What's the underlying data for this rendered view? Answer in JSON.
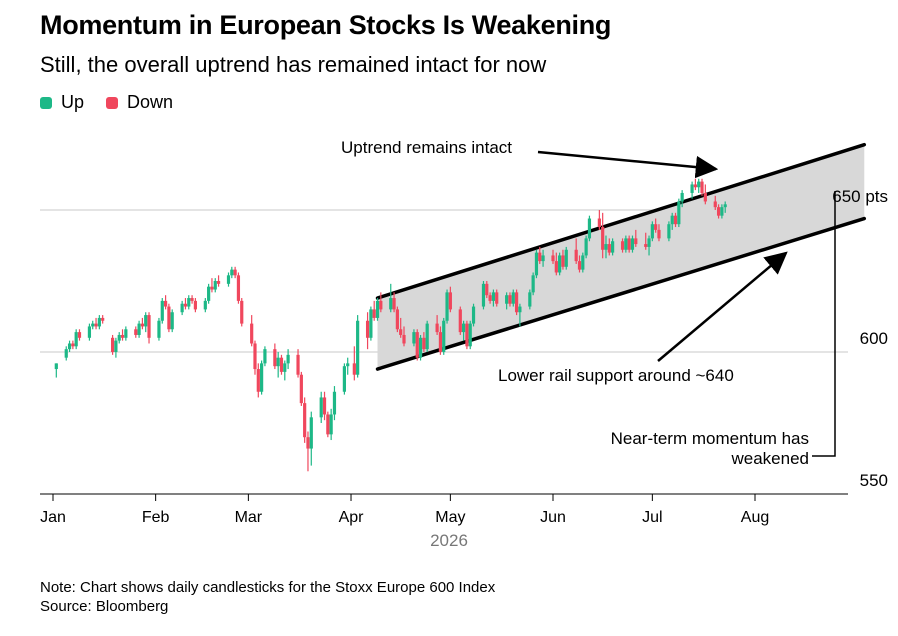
{
  "title": "Momentum in European Stocks Is Weakening",
  "subtitle": "Still, the overall uptrend has remained intact for now",
  "legend": [
    {
      "label": "Up",
      "color": "#1db887"
    },
    {
      "label": "Down",
      "color": "#f0475d"
    }
  ],
  "note": "Note: Chart shows daily candlesticks for the Stoxx Europe 600 Index",
  "source": "Source: Bloomberg",
  "chart_data": {
    "type": "candlestick",
    "x_axis": {
      "year_label": "2026",
      "months": [
        {
          "label": "Jan",
          "day": 1
        },
        {
          "label": "Feb",
          "day": 32
        },
        {
          "label": "Mar",
          "day": 60
        },
        {
          "label": "Apr",
          "day": 91
        },
        {
          "label": "May",
          "day": 121
        },
        {
          "label": "Jun",
          "day": 152
        },
        {
          "label": "Jul",
          "day": 182
        },
        {
          "label": "Aug",
          "day": 213
        }
      ]
    },
    "y_axis": {
      "range": [
        545,
        660
      ],
      "ticks": [
        {
          "value": 550,
          "label": "550"
        },
        {
          "value": 600,
          "label": "600"
        },
        {
          "value": 650,
          "label": "650 pts"
        }
      ]
    },
    "channel": {
      "upper": [
        {
          "day": 99,
          "value": 619
        },
        {
          "day": 246,
          "value": 673
        }
      ],
      "lower": [
        {
          "day": 99,
          "value": 594
        },
        {
          "day": 246,
          "value": 647
        }
      ]
    },
    "annotations": [
      {
        "text": "Uptrend remains intact"
      },
      {
        "text": "Lower rail support around ~640"
      },
      {
        "text_lines": [
          "Near-term momentum has",
          "weakened"
        ]
      }
    ],
    "candles": [
      {
        "day": 2,
        "o": 594,
        "h": 596,
        "l": 591,
        "c": 596
      },
      {
        "day": 5,
        "o": 598,
        "h": 602,
        "l": 597,
        "c": 601
      },
      {
        "day": 6,
        "o": 601,
        "h": 604,
        "l": 600,
        "c": 603
      },
      {
        "day": 7,
        "o": 603,
        "h": 604,
        "l": 601,
        "c": 602
      },
      {
        "day": 8,
        "o": 602,
        "h": 608,
        "l": 601,
        "c": 607
      },
      {
        "day": 9,
        "o": 607,
        "h": 608,
        "l": 604,
        "c": 605
      },
      {
        "day": 12,
        "o": 605,
        "h": 610,
        "l": 604,
        "c": 609
      },
      {
        "day": 13,
        "o": 609,
        "h": 611,
        "l": 608,
        "c": 610
      },
      {
        "day": 14,
        "o": 610,
        "h": 612,
        "l": 608,
        "c": 609
      },
      {
        "day": 15,
        "o": 609,
        "h": 613,
        "l": 608,
        "c": 612
      },
      {
        "day": 16,
        "o": 612,
        "h": 613,
        "l": 610,
        "c": 611
      },
      {
        "day": 19,
        "o": 605,
        "h": 606,
        "l": 599,
        "c": 600
      },
      {
        "day": 20,
        "o": 600,
        "h": 605,
        "l": 598,
        "c": 604
      },
      {
        "day": 21,
        "o": 604,
        "h": 607,
        "l": 603,
        "c": 606
      },
      {
        "day": 22,
        "o": 606,
        "h": 608,
        "l": 604,
        "c": 605
      },
      {
        "day": 23,
        "o": 605,
        "h": 609,
        "l": 604,
        "c": 608
      },
      {
        "day": 26,
        "o": 608,
        "h": 609,
        "l": 605,
        "c": 606
      },
      {
        "day": 27,
        "o": 606,
        "h": 611,
        "l": 605,
        "c": 610
      },
      {
        "day": 28,
        "o": 610,
        "h": 612,
        "l": 608,
        "c": 609
      },
      {
        "day": 29,
        "o": 609,
        "h": 614,
        "l": 607,
        "c": 613
      },
      {
        "day": 30,
        "o": 613,
        "h": 614,
        "l": 603,
        "c": 605
      },
      {
        "day": 33,
        "o": 605,
        "h": 612,
        "l": 604,
        "c": 611
      },
      {
        "day": 34,
        "o": 611,
        "h": 619,
        "l": 610,
        "c": 618
      },
      {
        "day": 35,
        "o": 618,
        "h": 620,
        "l": 615,
        "c": 616
      },
      {
        "day": 36,
        "o": 616,
        "h": 617,
        "l": 607,
        "c": 608
      },
      {
        "day": 37,
        "o": 608,
        "h": 615,
        "l": 607,
        "c": 614
      },
      {
        "day": 40,
        "o": 614,
        "h": 618,
        "l": 613,
        "c": 617
      },
      {
        "day": 41,
        "o": 617,
        "h": 619,
        "l": 615,
        "c": 616
      },
      {
        "day": 42,
        "o": 616,
        "h": 620,
        "l": 615,
        "c": 619
      },
      {
        "day": 43,
        "o": 619,
        "h": 620,
        "l": 617,
        "c": 618
      },
      {
        "day": 44,
        "o": 618,
        "h": 619,
        "l": 614,
        "c": 615
      },
      {
        "day": 47,
        "o": 615,
        "h": 619,
        "l": 614,
        "c": 618
      },
      {
        "day": 48,
        "o": 618,
        "h": 624,
        "l": 617,
        "c": 623
      },
      {
        "day": 49,
        "o": 623,
        "h": 626,
        "l": 621,
        "c": 622
      },
      {
        "day": 50,
        "o": 622,
        "h": 626,
        "l": 621,
        "c": 625
      },
      {
        "day": 51,
        "o": 625,
        "h": 627,
        "l": 623,
        "c": 624
      },
      {
        "day": 54,
        "o": 624,
        "h": 628,
        "l": 623,
        "c": 627
      },
      {
        "day": 55,
        "o": 627,
        "h": 630,
        "l": 626,
        "c": 629
      },
      {
        "day": 56,
        "o": 629,
        "h": 630,
        "l": 626,
        "c": 627
      },
      {
        "day": 57,
        "o": 627,
        "h": 628,
        "l": 617,
        "c": 618
      },
      {
        "day": 58,
        "o": 618,
        "h": 619,
        "l": 609,
        "c": 610
      },
      {
        "day": 61,
        "o": 610,
        "h": 613,
        "l": 602,
        "c": 603
      },
      {
        "day": 62,
        "o": 603,
        "h": 604,
        "l": 592,
        "c": 594
      },
      {
        "day": 63,
        "o": 594,
        "h": 596,
        "l": 584,
        "c": 586
      },
      {
        "day": 64,
        "o": 586,
        "h": 597,
        "l": 585,
        "c": 596
      },
      {
        "day": 65,
        "o": 596,
        "h": 602,
        "l": 595,
        "c": 601
      },
      {
        "day": 68,
        "o": 601,
        "h": 603,
        "l": 594,
        "c": 595
      },
      {
        "day": 69,
        "o": 595,
        "h": 600,
        "l": 591,
        "c": 598
      },
      {
        "day": 70,
        "o": 598,
        "h": 599,
        "l": 592,
        "c": 593
      },
      {
        "day": 71,
        "o": 593,
        "h": 597,
        "l": 590,
        "c": 596
      },
      {
        "day": 72,
        "o": 596,
        "h": 601,
        "l": 594,
        "c": 599
      },
      {
        "day": 75,
        "o": 599,
        "h": 601,
        "l": 591,
        "c": 592
      },
      {
        "day": 76,
        "o": 592,
        "h": 593,
        "l": 581,
        "c": 582
      },
      {
        "day": 77,
        "o": 582,
        "h": 584,
        "l": 568,
        "c": 570
      },
      {
        "day": 78,
        "o": 570,
        "h": 572,
        "l": 558,
        "c": 566
      },
      {
        "day": 79,
        "o": 566,
        "h": 579,
        "l": 560,
        "c": 577
      },
      {
        "day": 82,
        "o": 577,
        "h": 586,
        "l": 575,
        "c": 584
      },
      {
        "day": 83,
        "o": 584,
        "h": 586,
        "l": 576,
        "c": 578
      },
      {
        "day": 84,
        "o": 578,
        "h": 579,
        "l": 570,
        "c": 571
      },
      {
        "day": 85,
        "o": 571,
        "h": 580,
        "l": 569,
        "c": 578
      },
      {
        "day": 86,
        "o": 578,
        "h": 588,
        "l": 576,
        "c": 586
      },
      {
        "day": 89,
        "o": 586,
        "h": 596,
        "l": 585,
        "c": 595
      },
      {
        "day": 90,
        "o": 595,
        "h": 598,
        "l": 592,
        "c": 596
      },
      {
        "day": 92,
        "o": 596,
        "h": 602,
        "l": 590,
        "c": 592
      },
      {
        "day": 93,
        "o": 592,
        "h": 613,
        "l": 591,
        "c": 611
      },
      {
        "day": 96,
        "o": 611,
        "h": 614,
        "l": 601,
        "c": 605
      },
      {
        "day": 97,
        "o": 605,
        "h": 616,
        "l": 604,
        "c": 615
      },
      {
        "day": 98,
        "o": 615,
        "h": 618,
        "l": 611,
        "c": 612
      },
      {
        "day": 99,
        "o": 612,
        "h": 619,
        "l": 611,
        "c": 618
      },
      {
        "day": 100,
        "o": 618,
        "h": 621,
        "l": 614,
        "c": 615
      },
      {
        "day": 103,
        "o": 615,
        "h": 624,
        "l": 614,
        "c": 619
      },
      {
        "day": 104,
        "o": 619,
        "h": 621,
        "l": 614,
        "c": 615
      },
      {
        "day": 105,
        "o": 615,
        "h": 616,
        "l": 607,
        "c": 608
      },
      {
        "day": 106,
        "o": 608,
        "h": 612,
        "l": 605,
        "c": 606
      },
      {
        "day": 107,
        "o": 606,
        "h": 609,
        "l": 602,
        "c": 603
      },
      {
        "day": 110,
        "o": 603,
        "h": 608,
        "l": 602,
        "c": 607
      },
      {
        "day": 111,
        "o": 607,
        "h": 608,
        "l": 597,
        "c": 598
      },
      {
        "day": 112,
        "o": 598,
        "h": 606,
        "l": 597,
        "c": 605
      },
      {
        "day": 113,
        "o": 605,
        "h": 607,
        "l": 600,
        "c": 601
      },
      {
        "day": 114,
        "o": 601,
        "h": 611,
        "l": 600,
        "c": 610
      },
      {
        "day": 117,
        "o": 610,
        "h": 613,
        "l": 606,
        "c": 607
      },
      {
        "day": 118,
        "o": 607,
        "h": 609,
        "l": 599,
        "c": 600
      },
      {
        "day": 119,
        "o": 600,
        "h": 612,
        "l": 599,
        "c": 611
      },
      {
        "day": 120,
        "o": 611,
        "h": 622,
        "l": 610,
        "c": 621
      },
      {
        "day": 121,
        "o": 621,
        "h": 623,
        "l": 614,
        "c": 615
      },
      {
        "day": 124,
        "o": 615,
        "h": 616,
        "l": 606,
        "c": 607
      },
      {
        "day": 125,
        "o": 607,
        "h": 611,
        "l": 604,
        "c": 610
      },
      {
        "day": 126,
        "o": 610,
        "h": 611,
        "l": 601,
        "c": 602
      },
      {
        "day": 127,
        "o": 602,
        "h": 611,
        "l": 601,
        "c": 610
      },
      {
        "day": 128,
        "o": 610,
        "h": 617,
        "l": 609,
        "c": 616
      },
      {
        "day": 131,
        "o": 616,
        "h": 625,
        "l": 615,
        "c": 624
      },
      {
        "day": 132,
        "o": 624,
        "h": 625,
        "l": 619,
        "c": 620
      },
      {
        "day": 133,
        "o": 620,
        "h": 621,
        "l": 617,
        "c": 618
      },
      {
        "day": 134,
        "o": 618,
        "h": 622,
        "l": 616,
        "c": 621
      },
      {
        "day": 135,
        "o": 621,
        "h": 622,
        "l": 616,
        "c": 617
      },
      {
        "day": 138,
        "o": 617,
        "h": 621,
        "l": 615,
        "c": 620
      },
      {
        "day": 139,
        "o": 620,
        "h": 621,
        "l": 616,
        "c": 617
      },
      {
        "day": 140,
        "o": 617,
        "h": 622,
        "l": 616,
        "c": 621
      },
      {
        "day": 141,
        "o": 621,
        "h": 622,
        "l": 613,
        "c": 614
      },
      {
        "day": 142,
        "o": 614,
        "h": 617,
        "l": 609,
        "c": 616
      },
      {
        "day": 145,
        "o": 616,
        "h": 622,
        "l": 615,
        "c": 621
      },
      {
        "day": 146,
        "o": 621,
        "h": 628,
        "l": 620,
        "c": 627
      },
      {
        "day": 147,
        "o": 627,
        "h": 636,
        "l": 626,
        "c": 635
      },
      {
        "day": 148,
        "o": 635,
        "h": 637,
        "l": 631,
        "c": 632
      },
      {
        "day": 149,
        "o": 632,
        "h": 636,
        "l": 630,
        "c": 634
      },
      {
        "day": 152,
        "o": 634,
        "h": 636,
        "l": 631,
        "c": 632
      },
      {
        "day": 153,
        "o": 632,
        "h": 635,
        "l": 627,
        "c": 628
      },
      {
        "day": 154,
        "o": 628,
        "h": 635,
        "l": 627,
        "c": 634
      },
      {
        "day": 155,
        "o": 634,
        "h": 636,
        "l": 629,
        "c": 630
      },
      {
        "day": 156,
        "o": 630,
        "h": 637,
        "l": 629,
        "c": 636
      },
      {
        "day": 159,
        "o": 636,
        "h": 640,
        "l": 631,
        "c": 632
      },
      {
        "day": 160,
        "o": 632,
        "h": 634,
        "l": 628,
        "c": 629
      },
      {
        "day": 161,
        "o": 629,
        "h": 635,
        "l": 628,
        "c": 634
      },
      {
        "day": 162,
        "o": 634,
        "h": 641,
        "l": 633,
        "c": 640
      },
      {
        "day": 163,
        "o": 640,
        "h": 648,
        "l": 639,
        "c": 647
      },
      {
        "day": 166,
        "o": 647,
        "h": 650,
        "l": 643,
        "c": 644
      },
      {
        "day": 167,
        "o": 644,
        "h": 649,
        "l": 633,
        "c": 636
      },
      {
        "day": 168,
        "o": 636,
        "h": 641,
        "l": 633,
        "c": 638
      },
      {
        "day": 169,
        "o": 638,
        "h": 640,
        "l": 634,
        "c": 635
      },
      {
        "day": 170,
        "o": 635,
        "h": 640,
        "l": 634,
        "c": 639
      },
      {
        "day": 173,
        "o": 639,
        "h": 640,
        "l": 635,
        "c": 636
      },
      {
        "day": 174,
        "o": 636,
        "h": 641,
        "l": 635,
        "c": 640
      },
      {
        "day": 175,
        "o": 640,
        "h": 641,
        "l": 635,
        "c": 636
      },
      {
        "day": 176,
        "o": 636,
        "h": 641,
        "l": 635,
        "c": 640
      },
      {
        "day": 177,
        "o": 640,
        "h": 643,
        "l": 637,
        "c": 638
      },
      {
        "day": 180,
        "o": 638,
        "h": 642,
        "l": 636,
        "c": 637
      },
      {
        "day": 181,
        "o": 637,
        "h": 641,
        "l": 634,
        "c": 640
      },
      {
        "day": 182,
        "o": 640,
        "h": 646,
        "l": 639,
        "c": 645
      },
      {
        "day": 183,
        "o": 645,
        "h": 647,
        "l": 642,
        "c": 643
      },
      {
        "day": 184,
        "o": 643,
        "h": 645,
        "l": 639,
        "c": 640
      },
      {
        "day": 187,
        "o": 640,
        "h": 646,
        "l": 639,
        "c": 645
      },
      {
        "day": 188,
        "o": 645,
        "h": 649,
        "l": 643,
        "c": 648
      },
      {
        "day": 189,
        "o": 648,
        "h": 649,
        "l": 644,
        "c": 645
      },
      {
        "day": 190,
        "o": 645,
        "h": 654,
        "l": 644,
        "c": 653
      },
      {
        "day": 191,
        "o": 653,
        "h": 657,
        "l": 651,
        "c": 656
      },
      {
        "day": 194,
        "o": 656,
        "h": 660,
        "l": 654,
        "c": 659
      },
      {
        "day": 195,
        "o": 659,
        "h": 661,
        "l": 657,
        "c": 658
      },
      {
        "day": 196,
        "o": 658,
        "h": 661,
        "l": 656,
        "c": 660
      },
      {
        "day": 197,
        "o": 660,
        "h": 661,
        "l": 655,
        "c": 656
      },
      {
        "day": 198,
        "o": 656,
        "h": 659,
        "l": 652,
        "c": 653
      },
      {
        "day": 201,
        "o": 653,
        "h": 655,
        "l": 650,
        "c": 651
      },
      {
        "day": 202,
        "o": 651,
        "h": 652,
        "l": 647,
        "c": 648
      },
      {
        "day": 203,
        "o": 648,
        "h": 652,
        "l": 647,
        "c": 651
      },
      {
        "day": 204,
        "o": 651,
        "h": 653,
        "l": 649,
        "c": 652
      }
    ]
  }
}
